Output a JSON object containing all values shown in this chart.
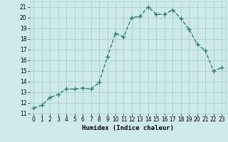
{
  "x": [
    0,
    1,
    2,
    3,
    4,
    5,
    6,
    7,
    8,
    9,
    10,
    11,
    12,
    13,
    14,
    15,
    16,
    17,
    18,
    19,
    20,
    21,
    22,
    23
  ],
  "y": [
    11.5,
    11.8,
    12.5,
    12.8,
    13.3,
    13.3,
    13.4,
    13.3,
    13.9,
    16.3,
    18.5,
    18.2,
    20.0,
    20.1,
    21.0,
    20.3,
    20.3,
    20.7,
    19.9,
    18.9,
    17.5,
    16.9,
    15.0,
    15.3
  ],
  "line_color": "#2e7f6e",
  "marker": "+",
  "marker_size": 4,
  "marker_lw": 1.0,
  "bg_color": "#ceeae8",
  "grid_color": "#aacfcc",
  "xlabel": "Humidex (Indice chaleur)",
  "xlim": [
    -0.5,
    23.5
  ],
  "ylim": [
    11,
    21.5
  ],
  "yticks": [
    11,
    12,
    13,
    14,
    15,
    16,
    17,
    18,
    19,
    20,
    21
  ],
  "xticks": [
    0,
    1,
    2,
    3,
    4,
    5,
    6,
    7,
    8,
    9,
    10,
    11,
    12,
    13,
    14,
    15,
    16,
    17,
    18,
    19,
    20,
    21,
    22,
    23
  ],
  "label_fontsize": 6.5,
  "tick_fontsize": 5.5,
  "line_width": 1.0
}
